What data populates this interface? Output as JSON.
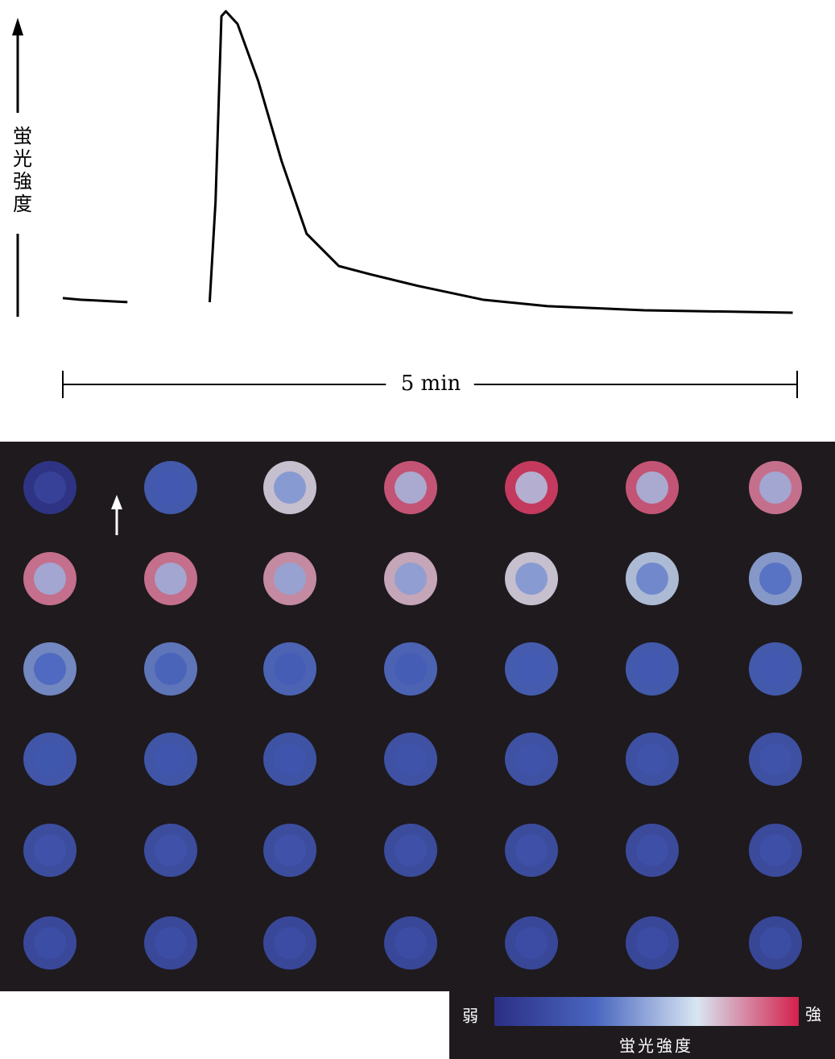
{
  "chart_data": {
    "type": "line",
    "ylabel": "蛍光強度",
    "xlabel": "5 min",
    "x": [
      0,
      0.12,
      0.44,
      0.6,
      1.0,
      1.04,
      1.08,
      1.11,
      1.19,
      1.33,
      1.49,
      1.66,
      1.88,
      2.09,
      2.42,
      2.86,
      3.3,
      3.96,
      4.97
    ],
    "series": [
      {
        "color": "#000000",
        "values": [
          7.8,
          7.3,
          6.5,
          null,
          6.5,
          38.9,
          98.4,
          100,
          95.9,
          77.7,
          51.8,
          28.5,
          18.1,
          15.5,
          11.7,
          7.3,
          5.2,
          3.9,
          3.1
        ]
      }
    ],
    "xlim": [
      0,
      5
    ],
    "ylim": [
      0,
      100
    ]
  },
  "image_grid": {
    "intensity": [
      [
        5,
        30,
        70,
        90,
        95,
        90,
        85
      ],
      [
        85,
        85,
        80,
        75,
        70,
        60,
        50
      ],
      [
        45,
        40,
        35,
        35,
        32,
        30,
        30
      ],
      [
        28,
        27,
        26,
        25,
        25,
        24,
        24
      ],
      [
        22,
        22,
        22,
        21,
        21,
        20,
        20
      ],
      [
        19,
        19,
        18,
        18,
        18,
        18,
        17
      ]
    ],
    "colormap": [
      "#2b2f85",
      "#4a66c0",
      "#d8e6f2",
      "#d4204c"
    ],
    "low_label": "弱",
    "high_label": "強",
    "colorbar_label": "蛍光強度"
  }
}
